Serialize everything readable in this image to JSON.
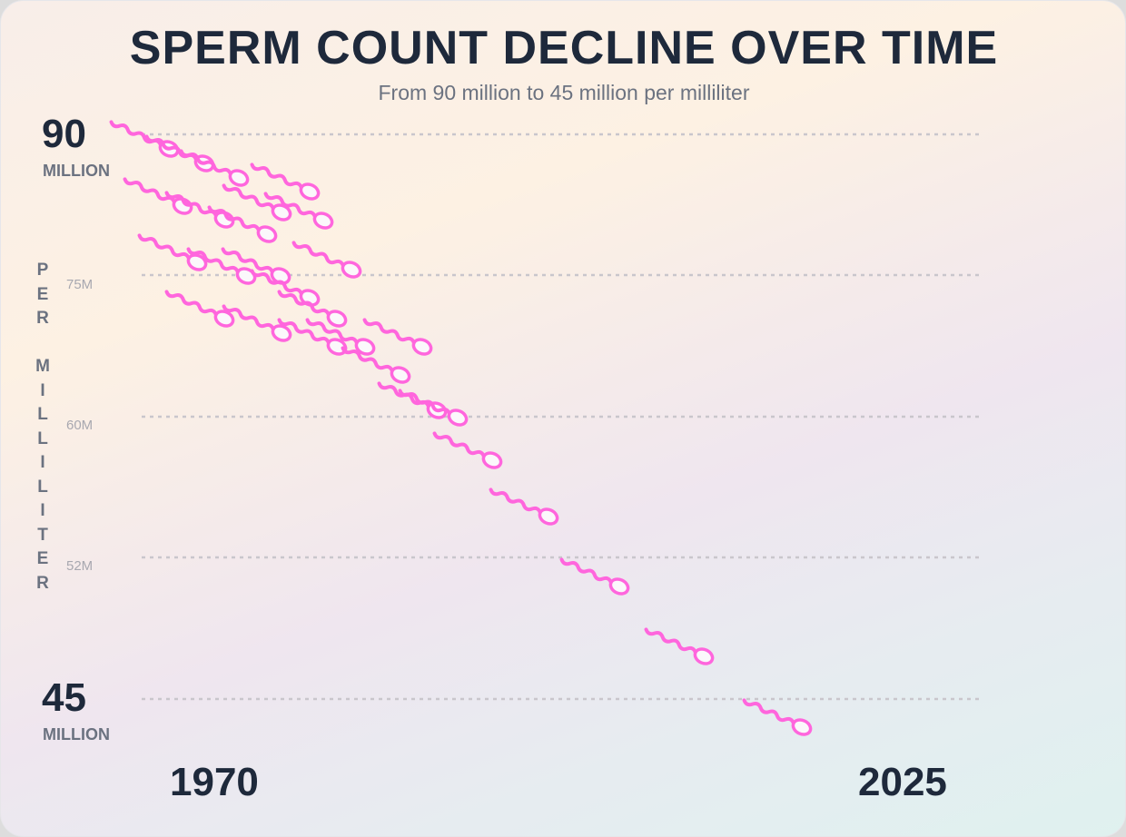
{
  "chart_data": {
    "type": "infographic",
    "title": "SPERM COUNT DECLINE OVER TIME",
    "subtitle": "From 90 million to 45 million per milliliter",
    "ylabel": "PER MILLILITER",
    "y_top": {
      "value": "90",
      "unit": "MILLION"
    },
    "y_bottom": {
      "value": "45",
      "unit": "MILLION"
    },
    "y_ticks": [
      "75M",
      "60M",
      "52M"
    ],
    "gridlines": [
      90,
      75,
      60,
      52,
      45
    ],
    "x_labels": [
      "1970",
      "2025"
    ],
    "grid": true,
    "mark_color": "#ff66dd",
    "mark_icon": "sperm-icon"
  }
}
